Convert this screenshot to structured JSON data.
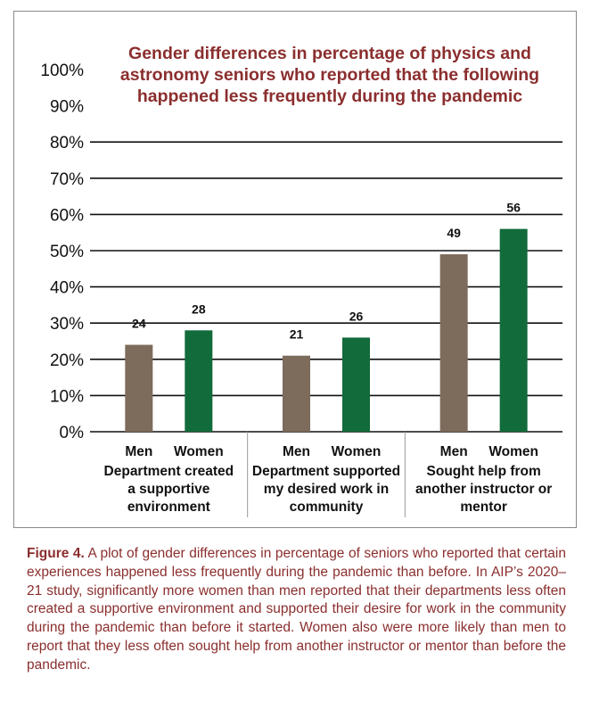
{
  "chart_data": {
    "type": "bar",
    "title": "Gender differences in percentage of physics and astronomy seniors who reported that the following happened less frequently during the pandemic",
    "title_lines": [
      "Gender differences in percentage of physics and",
      "astronomy seniors who reported that the following",
      "happened less frequently during the pandemic"
    ],
    "title_color": "#8b2e2e",
    "xlabel": "",
    "ylabel": "",
    "ylim": [
      0,
      100
    ],
    "y_ticks": [
      "0%",
      "10%",
      "20%",
      "30%",
      "40%",
      "50%",
      "60%",
      "70%",
      "80%",
      "90%",
      "100%"
    ],
    "gridlines": "horizontal, 10% to 80%",
    "groups": [
      {
        "label_lines": [
          "Department created",
          "a supportive",
          "environment"
        ]
      },
      {
        "label_lines": [
          "Department supported",
          "my desired work in",
          "community"
        ]
      },
      {
        "label_lines": [
          "Sought help from",
          "another instructor or",
          "mentor"
        ]
      }
    ],
    "series": [
      {
        "name": "Men",
        "color": "#7d6b5c",
        "values": [
          24,
          21,
          49
        ]
      },
      {
        "name": "Women",
        "color": "#126b3a",
        "values": [
          28,
          26,
          56
        ]
      }
    ],
    "data_labels": "shown above bars"
  },
  "caption": {
    "label": "Figure 4.",
    "text": "A plot of gender differences in percentage of seniors who reported that certain experiences happened less frequently during the pandemic than before. In AIP’s 2020–21 study, significantly more women than men reported that their departments less often created a supportive environment and supported their desire for work in the community during the pandemic than before it started. Women also were more likely than men to report that they less often sought help from another instructor or mentor than before the pandemic."
  }
}
